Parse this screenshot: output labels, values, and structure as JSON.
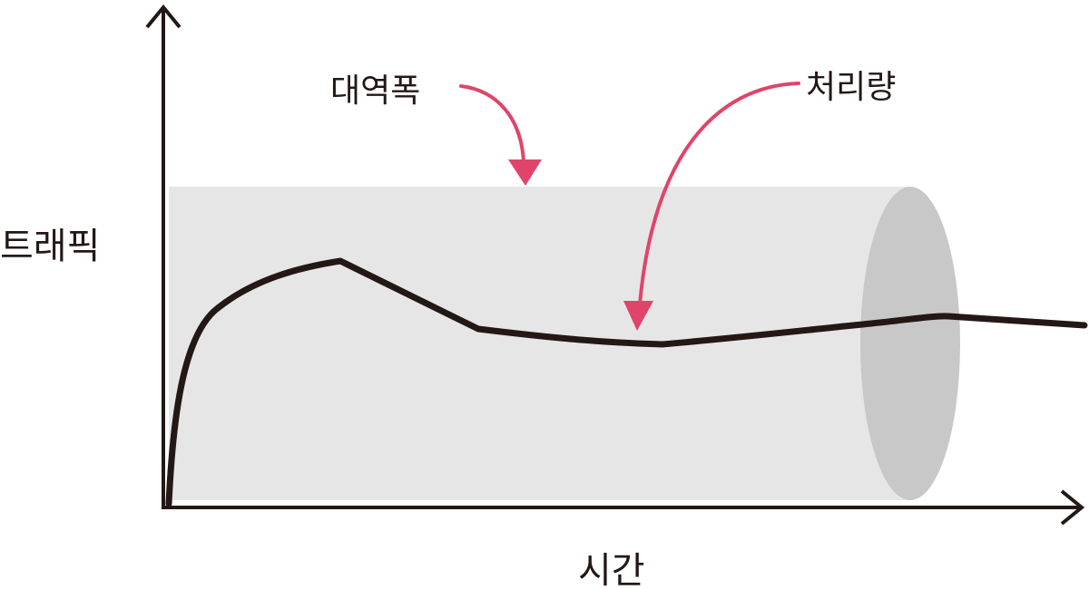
{
  "diagram": {
    "axes": {
      "y_label": "트래픽",
      "x_label": "시간"
    },
    "annotations": {
      "bandwidth": "대역폭",
      "throughput": "처리량"
    },
    "colors": {
      "axis": "#231815",
      "curve": "#231815",
      "pipe_body": "#e6e6e6",
      "pipe_end": "#c8c8c8",
      "arrow": "#e0446a",
      "text": "#231815"
    }
  }
}
